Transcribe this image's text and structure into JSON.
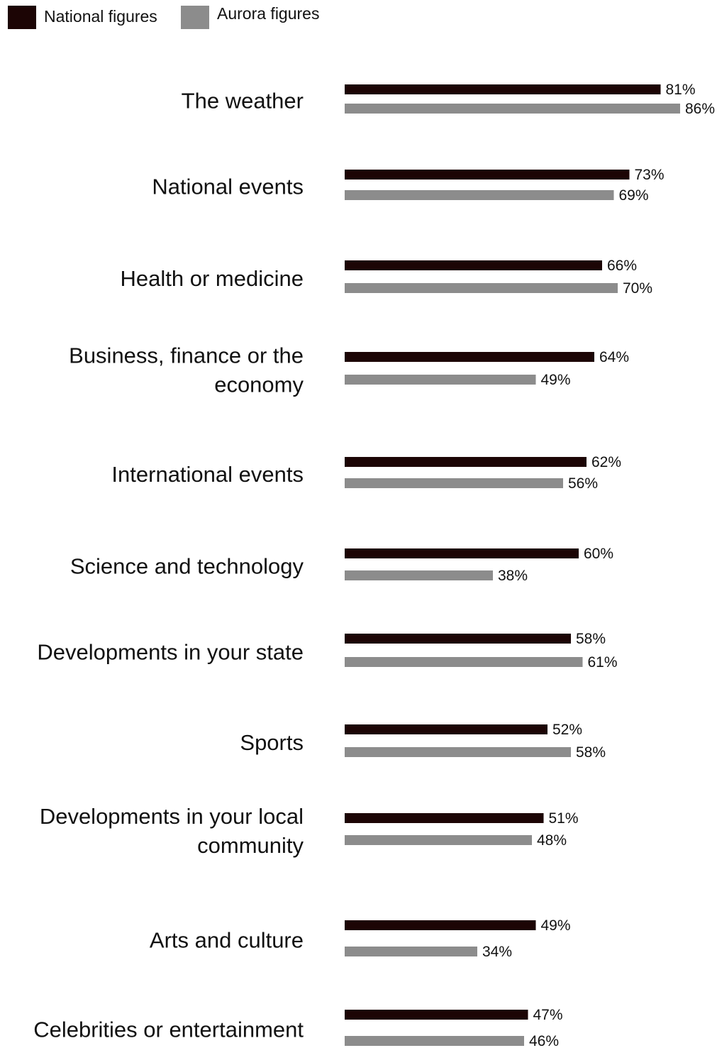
{
  "chart_data": {
    "type": "bar",
    "orientation": "horizontal",
    "categories": [
      "The weather",
      "National events",
      "Health or medicine",
      "Business, finance or the economy",
      "International events",
      "Science and technology",
      "Developments in your state",
      "Sports",
      "Developments in your local community",
      "Arts and culture",
      "Celebrities or entertainment"
    ],
    "series": [
      {
        "name": "National figures",
        "color": "#1c0505",
        "values": [
          81,
          73,
          66,
          64,
          62,
          60,
          58,
          52,
          51,
          49,
          47
        ],
        "labels": [
          "81%",
          "73%",
          "66%",
          "64%",
          "62%",
          "60%",
          "58%",
          "52%",
          "51%",
          "49%",
          "47%"
        ]
      },
      {
        "name": "Aurora figures",
        "color": "#8c8c8c",
        "values": [
          86,
          69,
          70,
          49,
          56,
          38,
          61,
          58,
          48,
          34,
          46
        ],
        "labels": [
          "86%",
          "69%",
          "70%",
          "49%",
          "56%",
          "38%",
          "61%",
          "58%",
          "48%",
          "34%",
          "46%"
        ]
      }
    ],
    "xlim": [
      0,
      86
    ],
    "grid": false,
    "legend_position": "top-left",
    "title": "",
    "xlabel": "",
    "ylabel": ""
  }
}
